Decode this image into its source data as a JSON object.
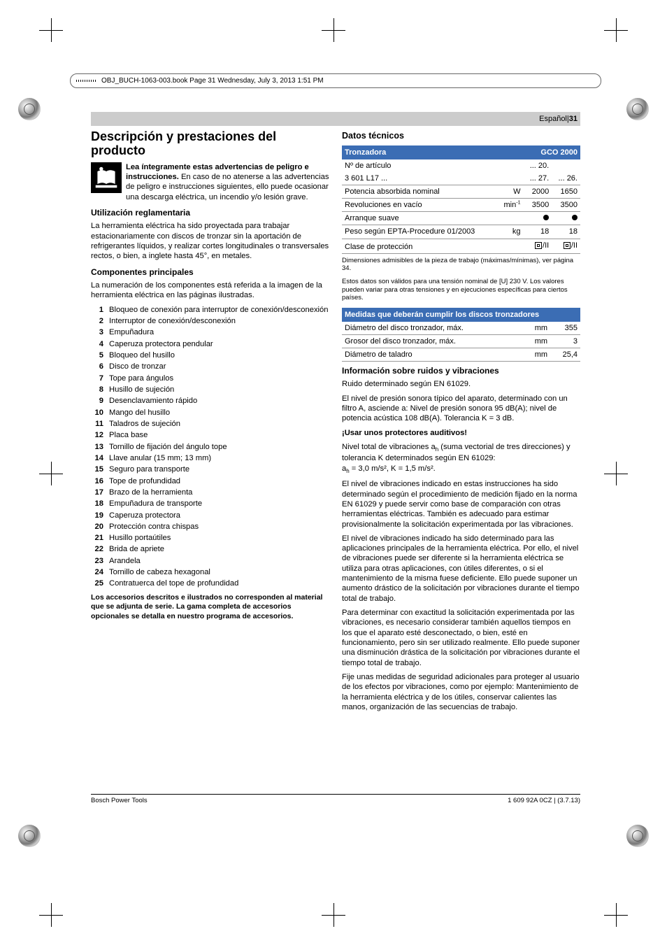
{
  "print_header": {
    "text": "OBJ_BUCH-1063-003.book  Page 31  Wednesday, July 3, 2013  1:51 PM"
  },
  "banner": {
    "lang": "Español",
    "sep": " | ",
    "page": "31"
  },
  "left": {
    "title": "Descripción y prestaciones del producto",
    "warning_bold": "Lea íntegramente estas advertencias de peligro e instrucciones.",
    "warning_rest": " En caso de no atenerse a las advertencias de peligro e instrucciones siguientes, ello puede ocasionar una descarga eléctrica, un incendio y/o lesión grave.",
    "use_head": "Utilización reglamentaria",
    "use_text": "La herramienta eléctrica ha sido proyectada para trabajar estacionariamente con discos de tronzar sin la aportación de refrigerantes líquidos, y realizar cortes longitudinales o transversales rectos, o bien, a inglete hasta 45°, en metales.",
    "comp_head": "Componentes principales",
    "comp_intro": "La numeración de los componentes está referida a la imagen de la herramienta eléctrica en las páginas ilustradas.",
    "components": [
      "Bloqueo de conexión para interruptor de conexión/desconexión",
      "Interruptor de conexión/desconexión",
      "Empuñadura",
      "Caperuza protectora pendular",
      "Bloqueo del husillo",
      "Disco de tronzar",
      "Tope para ángulos",
      "Husillo de sujeción",
      "Desenclavamiento rápido",
      "Mango del husillo",
      "Taladros de sujeción",
      "Placa base",
      "Tornillo de fijación del ángulo tope",
      "Llave anular (15 mm; 13 mm)",
      "Seguro para transporte",
      "Tope de profundidad",
      "Brazo de la herramienta",
      "Empuñadura de transporte",
      "Caperuza protectora",
      "Protección contra chispas",
      "Husillo portaútiles",
      "Brida de apriete",
      "Arandela",
      "Tornillo de cabeza hexagonal",
      "Contratuerca del tope de profundidad"
    ],
    "accessory_note": "Los accesorios descritos e ilustrados no corresponden al material que se adjunta de serie. La gama completa de accesorios opcionales se detalla en nuestro programa de accesorios."
  },
  "right": {
    "datos_head": "Datos técnicos",
    "spec_table": {
      "headers": {
        "label": "Tronzadora",
        "model": "GCO 2000"
      },
      "rows": [
        {
          "label": "Nº de artículo",
          "unit": "",
          "v1": "... 20.",
          "v2": ""
        },
        {
          "label": "3 601 L17 ...",
          "unit": "",
          "v1": "... 27.",
          "v2": "... 26."
        },
        {
          "label": "Potencia absorbida nominal",
          "unit": "W",
          "v1": "2000",
          "v2": "1650"
        },
        {
          "label": "Revoluciones en vacío",
          "unit": "min⁻¹",
          "v1": "3500",
          "v2": "3500"
        },
        {
          "label": "Arranque suave",
          "unit": "",
          "v1": "●",
          "v2": "●",
          "dot": true
        },
        {
          "label": "Peso según EPTA-Procedure 01/2003",
          "unit": "kg",
          "v1": "18",
          "v2": "18"
        },
        {
          "label": "Clase de protección",
          "unit": "",
          "v1": "□/II",
          "v2": "□/II",
          "prot": true
        }
      ],
      "note1": "Dimensiones admisibles de la pieza de trabajo (máximas/mínimas), ver página 34.",
      "note2": "Estos datos son válidos para una tensión nominal de [U] 230 V. Los valores pueden variar para otras tensiones y en ejecuciones específicas para ciertos países."
    },
    "disc_table": {
      "header": "Medidas que deberán cumplir los discos tronzadores",
      "rows": [
        {
          "label": "Diámetro del disco tronzador, máx.",
          "unit": "mm",
          "val": "355"
        },
        {
          "label": "Grosor del disco tronzador, máx.",
          "unit": "mm",
          "val": "3"
        },
        {
          "label": "Diámetro de taladro",
          "unit": "mm",
          "val": "25,4"
        }
      ]
    },
    "noise_head": "Información sobre ruidos y vibraciones",
    "noise_p1": "Ruido determinado según EN 61029.",
    "noise_p2": "El nivel de presión sonora típico del aparato, determinado con un filtro A, asciende a: Nivel de presión sonora 95 dB(A); nivel de potencia acústica 108 dB(A). Tolerancia K = 3 dB.",
    "noise_bold": "¡Usar unos protectores auditivos!",
    "vib_p1a": "Nivel total de vibraciones a",
    "vib_p1b": " (suma vectorial de tres direcciones) y tolerancia K determinados según EN 61029:",
    "vib_formula_a": "a",
    "vib_formula_rest": " = 3,0 m/s², K = 1,5 m/s².",
    "vib_p2": "El nivel de vibraciones indicado en estas instrucciones ha sido determinado según el procedimiento de medición fijado en la norma EN 61029 y puede servir como base de comparación con otras herramientas eléctricas. También es adecuado para estimar provisionalmente la solicitación experimentada por las vibraciones.",
    "vib_p3": "El nivel de vibraciones indicado ha sido determinado para las aplicaciones principales de la herramienta eléctrica. Por ello, el nivel de vibraciones puede ser diferente si la herramienta eléctrica se utiliza para otras aplicaciones, con útiles diferentes, o si el mantenimiento de la misma fuese deficiente. Ello puede suponer un aumento drástico de la solicitación por vibraciones durante el tiempo total de trabajo.",
    "vib_p4": "Para determinar con exactitud la solicitación experimentada por las vibraciones, es necesario considerar también aquellos tiempos en los que el aparato esté desconectado, o bien, esté en funcionamiento, pero sin ser utilizado realmente. Ello puede suponer una disminución drástica de la solicitación por vibraciones durante el tiempo total de trabajo.",
    "vib_p5": "Fije unas medidas de seguridad adicionales para proteger al usuario de los efectos por vibraciones, como por ejemplo: Mantenimiento de la herramienta eléctrica y de los útiles, conservar calientes las manos, organización de las secuencias de trabajo."
  },
  "footer": {
    "left": "Bosch Power Tools",
    "right": "1 609 92A 0CZ | (3.7.13)"
  },
  "colors": {
    "table_header_bg": "#3b6db4",
    "banner_bg": "#cccccc"
  }
}
